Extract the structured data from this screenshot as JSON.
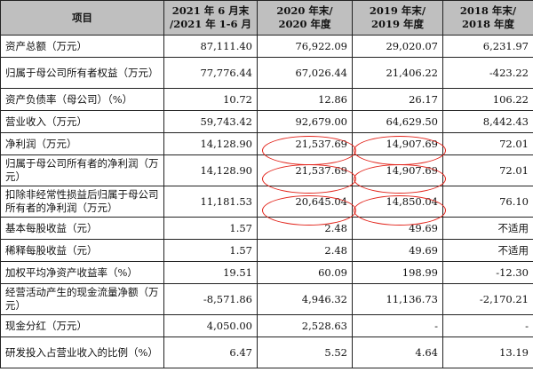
{
  "headers": [
    [
      "项目"
    ],
    [
      "2021 年 6 月末",
      "/2021 年 1-6 月"
    ],
    [
      "2020 年末/",
      "2020 年度"
    ],
    [
      "2019 年末/",
      "2019 年度"
    ],
    [
      "2018 年末/",
      "2018 年度"
    ]
  ],
  "rows": [
    {
      "label": "资产总额（万元）",
      "values": [
        "87,111.40",
        "76,922.09",
        "29,020.07",
        "6,231.97"
      ]
    },
    {
      "label": "归属于母公司所有者权益（万元）",
      "values": [
        "77,776.44",
        "67,026.44",
        "21,406.22",
        "-423.22"
      ]
    },
    {
      "label": "资产负债率（母公司）（%）",
      "values": [
        "10.72",
        "12.86",
        "26.17",
        "106.22"
      ]
    },
    {
      "label": "营业收入（万元）",
      "values": [
        "59,743.42",
        "92,679.00",
        "64,629.50",
        "8,442.43"
      ]
    },
    {
      "label": "净利润（万元）",
      "values": [
        "14,128.90",
        "21,537.69",
        "14,907.69",
        "72.01"
      ]
    },
    {
      "label": "归属于母公司所有者的净利润（万元）",
      "values": [
        "14,128.90",
        "21,537.69",
        "14,907.69",
        "72.01"
      ]
    },
    {
      "label": "扣除非经常性损益后归属于母公司所有者的净利润（万元）",
      "values": [
        "11,181.53",
        "20,645.04",
        "14,850.04",
        "76.10"
      ]
    },
    {
      "label": "基本每股收益（元）",
      "values": [
        "1.57",
        "2.48",
        "49.69",
        "不适用"
      ]
    },
    {
      "label": "稀释每股收益（元）",
      "values": [
        "1.57",
        "2.48",
        "49.69",
        "不适用"
      ]
    },
    {
      "label": "加权平均净资产收益率（%）",
      "values": [
        "19.51",
        "60.09",
        "198.99",
        "-12.30"
      ]
    },
    {
      "label": "经营活动产生的现金流量净额（万元）",
      "values": [
        "-8,571.86",
        "4,946.32",
        "11,136.73",
        "-2,170.21"
      ]
    },
    {
      "label": "现金分红（万元）",
      "values": [
        "4,050.00",
        "2,528.63",
        "-",
        "-"
      ]
    },
    {
      "label": "研发投入占营业收入的比例（%）",
      "values": [
        "6.47",
        "5.52",
        "4.64",
        "13.19"
      ]
    }
  ],
  "annotation_color": "#e2231a"
}
